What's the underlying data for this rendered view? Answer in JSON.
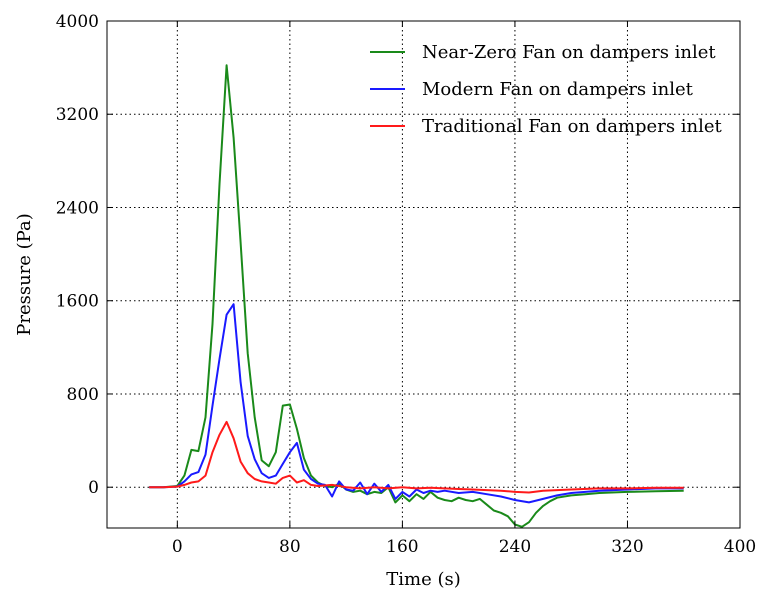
{
  "chart_data": {
    "type": "line",
    "title": "",
    "xlabel": "Time (s)",
    "ylabel": "Pressure (Pa)",
    "xlim": [
      -50,
      400
    ],
    "ylim": [
      -350,
      4000
    ],
    "x_ticks": [
      0,
      80,
      160,
      240,
      320,
      400
    ],
    "y_ticks": [
      0,
      800,
      1600,
      2400,
      3200,
      4000
    ],
    "grid": true,
    "legend_position": "top-right",
    "series": [
      {
        "name": "Near-Zero Fan on dampers inlet",
        "color": "#1a8a1a",
        "x": [
          -20,
          -10,
          0,
          5,
          10,
          15,
          20,
          25,
          30,
          35,
          40,
          45,
          50,
          55,
          60,
          65,
          70,
          75,
          80,
          85,
          90,
          95,
          100,
          105,
          110,
          115,
          120,
          125,
          130,
          135,
          140,
          145,
          150,
          155,
          160,
          165,
          170,
          175,
          180,
          185,
          190,
          195,
          200,
          205,
          210,
          215,
          220,
          225,
          230,
          235,
          240,
          245,
          250,
          255,
          260,
          265,
          270,
          280,
          290,
          300,
          320,
          340,
          360
        ],
        "y": [
          0,
          0,
          10,
          100,
          320,
          310,
          600,
          1400,
          2600,
          3620,
          3000,
          2100,
          1150,
          600,
          230,
          180,
          300,
          700,
          710,
          500,
          250,
          100,
          40,
          10,
          0,
          30,
          -20,
          -40,
          -30,
          -60,
          -40,
          -50,
          0,
          -130,
          -70,
          -120,
          -60,
          -100,
          -40,
          -90,
          -110,
          -120,
          -90,
          -110,
          -120,
          -100,
          -150,
          -200,
          -220,
          -250,
          -320,
          -340,
          -300,
          -220,
          -160,
          -120,
          -90,
          -70,
          -60,
          -50,
          -40,
          -35,
          -30
        ]
      },
      {
        "name": "Modern Fan on dampers inlet",
        "color": "#1a1aff",
        "x": [
          -20,
          -10,
          0,
          5,
          10,
          15,
          20,
          25,
          30,
          35,
          40,
          45,
          50,
          55,
          60,
          65,
          70,
          75,
          80,
          85,
          90,
          95,
          100,
          105,
          110,
          115,
          120,
          125,
          130,
          135,
          140,
          145,
          150,
          155,
          160,
          165,
          170,
          175,
          180,
          185,
          190,
          200,
          210,
          220,
          230,
          240,
          250,
          260,
          270,
          280,
          300,
          320,
          340,
          360
        ],
        "y": [
          0,
          0,
          5,
          50,
          110,
          130,
          280,
          700,
          1100,
          1480,
          1570,
          900,
          440,
          240,
          120,
          80,
          100,
          200,
          300,
          380,
          150,
          70,
          30,
          20,
          -80,
          50,
          -20,
          -30,
          40,
          -60,
          30,
          -40,
          20,
          -100,
          -40,
          -80,
          -20,
          -50,
          -30,
          -40,
          -30,
          -50,
          -40,
          -60,
          -80,
          -110,
          -130,
          -100,
          -70,
          -50,
          -30,
          -20,
          -10,
          -10
        ]
      },
      {
        "name": "Traditional Fan on dampers inlet",
        "color": "#ff1a1a",
        "x": [
          -20,
          -10,
          0,
          5,
          10,
          15,
          20,
          25,
          30,
          35,
          40,
          45,
          50,
          55,
          60,
          65,
          70,
          75,
          80,
          85,
          90,
          95,
          100,
          110,
          120,
          130,
          140,
          150,
          160,
          170,
          180,
          190,
          200,
          210,
          220,
          230,
          240,
          250,
          260,
          280,
          300,
          320,
          340,
          360
        ],
        "y": [
          0,
          0,
          5,
          20,
          40,
          50,
          100,
          300,
          450,
          560,
          420,
          220,
          120,
          70,
          50,
          40,
          30,
          80,
          100,
          40,
          60,
          20,
          10,
          20,
          0,
          -10,
          0,
          -10,
          0,
          -10,
          -5,
          -10,
          -15,
          -20,
          -25,
          -30,
          -40,
          -45,
          -30,
          -20,
          -10,
          -10,
          -5,
          -5
        ]
      }
    ]
  }
}
